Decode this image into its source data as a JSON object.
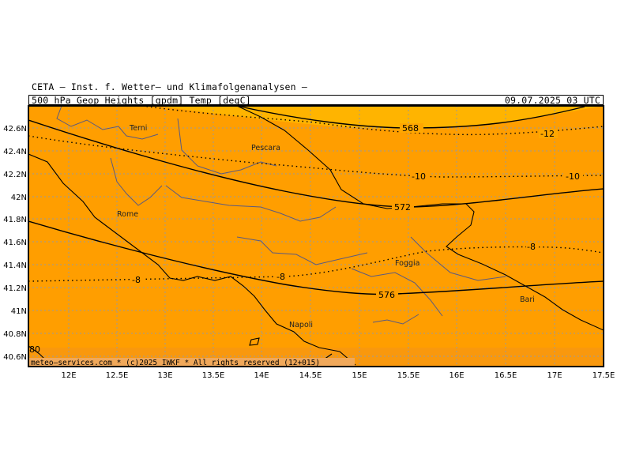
{
  "header": {
    "institute": "CETA – Inst. f. Wetter– und Klimafolgenanalysen –",
    "product": "500 hPa Geop Heights [gpdm] Temp [degC]",
    "valid_time": "09.07.2025 03 UTC"
  },
  "footer": {
    "credit": "meteo–services.com * (c)2025 IWKF * All rights reserved (12+015)"
  },
  "colors": {
    "background_fill": "#ff9e00",
    "warm_fill": "#ffb400",
    "contour": "#000000",
    "coastline": "#000000",
    "border": "#5a5a80",
    "grid": "#9a9a9a"
  },
  "axes": {
    "longitude_labels": [
      "12E",
      "12.5E",
      "13E",
      "13.5E",
      "14E",
      "14.5E",
      "15E",
      "15.5E",
      "16E",
      "16.5E",
      "17E",
      "17.5E"
    ],
    "latitude_labels": [
      "42.6N",
      "42.4N",
      "42.2N",
      "42N",
      "41.8N",
      "41.6N",
      "41.4N",
      "41.2N",
      "41N",
      "40.8N",
      "40.6N"
    ]
  },
  "geopotential_labels": [
    "568",
    "572",
    "576"
  ],
  "temperature_labels": [
    "-12",
    "-10",
    "-10",
    "-8",
    "-8",
    "-8"
  ],
  "edge_label": "80",
  "cities": [
    "Terni",
    "Pescara",
    "Rome",
    "Foggia",
    "Bari",
    "Napoli"
  ]
}
